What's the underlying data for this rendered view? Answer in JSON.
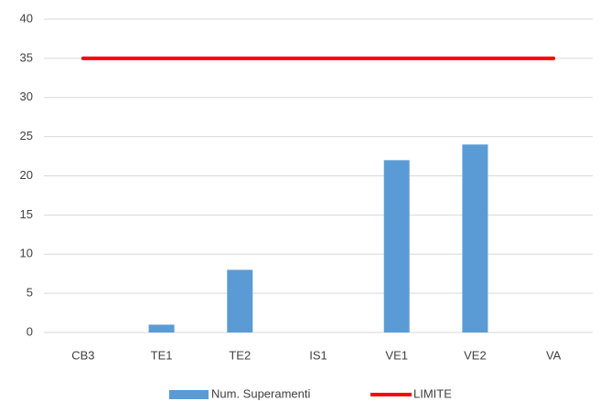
{
  "chart_data": {
    "type": "bar",
    "categories": [
      "CB3",
      "TE1",
      "TE2",
      "IS1",
      "VE1",
      "VE2",
      "VA"
    ],
    "series": [
      {
        "name": "Num. Superamenti",
        "color": "#5b9bd5",
        "type": "bar",
        "values": [
          0,
          1,
          8,
          0,
          22,
          24,
          0
        ]
      },
      {
        "name": "LIMITE",
        "color": "#ff0000",
        "type": "line",
        "values": [
          35,
          35,
          35,
          35,
          35,
          35,
          35
        ]
      }
    ],
    "ylim": [
      0,
      40
    ],
    "yticks": [
      0,
      5,
      10,
      15,
      20,
      25,
      30,
      35,
      40
    ],
    "grid": true,
    "legend": "bottom"
  }
}
